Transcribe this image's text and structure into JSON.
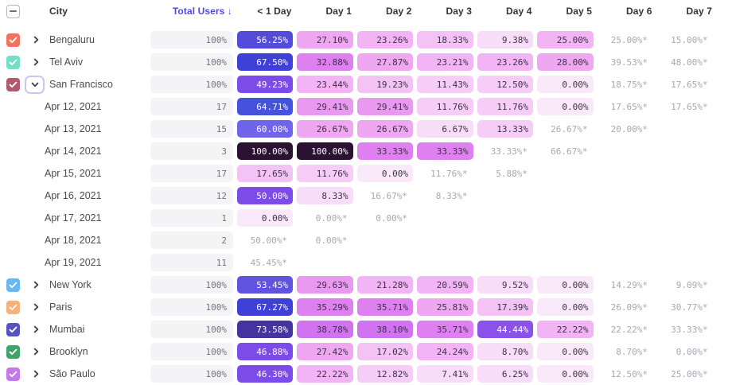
{
  "colors": {
    "accent": "#4E49E4",
    "header_text": "#34333E",
    "label_text": "#4B4A54",
    "muted_text": "#A7A7B2",
    "total_pill_bg": "#F4F3F6",
    "focus_ring": "#CDC4F4",
    "heat_scale": [
      {
        "max": 5,
        "bg": "#FAE9FB",
        "fg": "#3A3344"
      },
      {
        "max": 10,
        "bg": "#F8DDF9",
        "fg": "#3A3344"
      },
      {
        "max": 16,
        "bg": "#F6CDF7",
        "fg": "#3A3344"
      },
      {
        "max": 20,
        "bg": "#F4C3F5",
        "fg": "#3A3344"
      },
      {
        "max": 25,
        "bg": "#F2B4F4",
        "fg": "#3A3344"
      },
      {
        "max": 28,
        "bg": "#EFA7F2",
        "fg": "#3A3344"
      },
      {
        "max": 31,
        "bg": "#EA99F1",
        "fg": "#3A3344"
      },
      {
        "max": 36,
        "bg": "#DE80F0",
        "fg": "#3A3344"
      },
      {
        "max": 42,
        "bg": "#D172F0",
        "fg": "#3A3344"
      },
      {
        "max": 46,
        "bg": "#8A52E8",
        "fg": "#FFFFFF"
      },
      {
        "max": 52,
        "bg": "#7D4BE8",
        "fg": "#FFFFFF"
      },
      {
        "max": 55,
        "bg": "#6053E0",
        "fg": "#FFFFFF"
      },
      {
        "max": 58,
        "bg": "#554BDB",
        "fg": "#FFFFFF"
      },
      {
        "max": 62,
        "bg": "#6F64EA",
        "fg": "#FFFFFF"
      },
      {
        "max": 66,
        "bg": "#4553DC",
        "fg": "#FFFFFF"
      },
      {
        "max": 70,
        "bg": "#3F40D6",
        "fg": "#FFFFFF"
      },
      {
        "max": 85,
        "bg": "#45339E",
        "fg": "#FFFFFF"
      },
      {
        "max": 101,
        "bg": "#2C1232",
        "fg": "#FFFFFF"
      }
    ]
  },
  "icons": {
    "select_all": "indeterminate-dash",
    "row_check": "checkmark",
    "expand": "chevron-right",
    "collapse": "chevron-down",
    "sort": "arrow-down"
  },
  "table": {
    "select_all_state": "indeterminate",
    "columns": [
      {
        "key": "city",
        "label": "City"
      },
      {
        "key": "total",
        "label": "Total Users ↓",
        "sorted": "desc"
      },
      {
        "key": "d0",
        "label": "< 1 Day"
      },
      {
        "key": "d1",
        "label": "Day 1"
      },
      {
        "key": "d2",
        "label": "Day 2"
      },
      {
        "key": "d3",
        "label": "Day 3"
      },
      {
        "key": "d4",
        "label": "Day 4"
      },
      {
        "key": "d5",
        "label": "Day 5"
      },
      {
        "key": "d6",
        "label": "Day 6"
      },
      {
        "key": "d7",
        "label": "Day 7"
      }
    ],
    "rows": [
      {
        "type": "city",
        "label": "Bengaluru",
        "checkbox_color": "#F4715C",
        "checked": true,
        "expanded": false,
        "total": "100%",
        "cells": [
          {
            "pct": 56.25,
            "text": "56.25%"
          },
          {
            "pct": 27.1,
            "text": "27.10%"
          },
          {
            "pct": 23.26,
            "text": "23.26%"
          },
          {
            "pct": 18.33,
            "text": "18.33%"
          },
          {
            "pct": 9.38,
            "text": "9.38%"
          },
          {
            "pct": 25.0,
            "text": "25.00%"
          },
          {
            "text": "25.00%*",
            "partial": true
          },
          {
            "text": "15.00%*",
            "partial": true
          }
        ]
      },
      {
        "type": "city",
        "label": "Tel Aviv",
        "checkbox_color": "#74DEC6",
        "checked": true,
        "expanded": false,
        "total": "100%",
        "cells": [
          {
            "pct": 67.5,
            "text": "67.50%"
          },
          {
            "pct": 32.88,
            "text": "32.88%"
          },
          {
            "pct": 27.87,
            "text": "27.87%"
          },
          {
            "pct": 23.21,
            "text": "23.21%"
          },
          {
            "pct": 23.26,
            "text": "23.26%"
          },
          {
            "pct": 28.0,
            "text": "28.00%"
          },
          {
            "text": "39.53%*",
            "partial": true
          },
          {
            "text": "48.00%*",
            "partial": true
          }
        ]
      },
      {
        "type": "city",
        "label": "San Francisco",
        "checkbox_color": "#B25A6B",
        "checked": true,
        "expanded": true,
        "total": "100%",
        "cells": [
          {
            "pct": 49.23,
            "text": "49.23%"
          },
          {
            "pct": 23.44,
            "text": "23.44%"
          },
          {
            "pct": 19.23,
            "text": "19.23%"
          },
          {
            "pct": 11.43,
            "text": "11.43%"
          },
          {
            "pct": 12.5,
            "text": "12.50%"
          },
          {
            "pct": 0.0,
            "text": "0.00%"
          },
          {
            "text": "18.75%*",
            "partial": true
          },
          {
            "text": "17.65%*",
            "partial": true
          }
        ]
      },
      {
        "type": "cohort",
        "label": "Apr 12, 2021",
        "total": "17",
        "cells": [
          {
            "pct": 64.71,
            "text": "64.71%"
          },
          {
            "pct": 29.41,
            "text": "29.41%"
          },
          {
            "pct": 29.41,
            "text": "29.41%"
          },
          {
            "pct": 11.76,
            "text": "11.76%"
          },
          {
            "pct": 11.76,
            "text": "11.76%"
          },
          {
            "pct": 0.0,
            "text": "0.00%"
          },
          {
            "text": "17.65%*",
            "partial": true
          },
          {
            "text": "17.65%*",
            "partial": true
          }
        ]
      },
      {
        "type": "cohort",
        "label": "Apr 13, 2021",
        "total": "15",
        "cells": [
          {
            "pct": 60.0,
            "text": "60.00%"
          },
          {
            "pct": 26.67,
            "text": "26.67%"
          },
          {
            "pct": 26.67,
            "text": "26.67%"
          },
          {
            "pct": 6.67,
            "text": "6.67%"
          },
          {
            "pct": 13.33,
            "text": "13.33%"
          },
          {
            "text": "26.67%*",
            "partial": true
          },
          {
            "text": "20.00%*",
            "partial": true
          },
          null
        ]
      },
      {
        "type": "cohort",
        "label": "Apr 14, 2021",
        "total": "3",
        "cells": [
          {
            "pct": 100.0,
            "text": "100.00%"
          },
          {
            "pct": 100.0,
            "text": "100.00%"
          },
          {
            "pct": 33.33,
            "text": "33.33%"
          },
          {
            "pct": 33.33,
            "text": "33.33%"
          },
          {
            "text": "33.33%*",
            "partial": true
          },
          {
            "text": "66.67%*",
            "partial": true
          },
          null,
          null
        ]
      },
      {
        "type": "cohort",
        "label": "Apr 15, 2021",
        "total": "17",
        "cells": [
          {
            "pct": 17.65,
            "text": "17.65%"
          },
          {
            "pct": 11.76,
            "text": "11.76%"
          },
          {
            "pct": 0.0,
            "text": "0.00%"
          },
          {
            "text": "11.76%*",
            "partial": true
          },
          {
            "text": "5.88%*",
            "partial": true
          },
          null,
          null,
          null
        ]
      },
      {
        "type": "cohort",
        "label": "Apr 16, 2021",
        "total": "12",
        "cells": [
          {
            "pct": 50.0,
            "text": "50.00%"
          },
          {
            "pct": 8.33,
            "text": "8.33%"
          },
          {
            "text": "16.67%*",
            "partial": true
          },
          {
            "text": "8.33%*",
            "partial": true
          },
          null,
          null,
          null,
          null
        ]
      },
      {
        "type": "cohort",
        "label": "Apr 17, 2021",
        "total": "1",
        "cells": [
          {
            "pct": 0.0,
            "text": "0.00%"
          },
          {
            "text": "0.00%*",
            "partial": true
          },
          {
            "text": "0.00%*",
            "partial": true
          },
          null,
          null,
          null,
          null,
          null
        ]
      },
      {
        "type": "cohort",
        "label": "Apr 18, 2021",
        "total": "2",
        "cells": [
          {
            "text": "50.00%*",
            "partial": true
          },
          {
            "text": "0.00%*",
            "partial": true
          },
          null,
          null,
          null,
          null,
          null,
          null
        ]
      },
      {
        "type": "cohort",
        "label": "Apr 19, 2021",
        "total": "11",
        "cells": [
          {
            "text": "45.45%*",
            "partial": true
          },
          null,
          null,
          null,
          null,
          null,
          null,
          null
        ]
      },
      {
        "type": "city",
        "label": "New York",
        "checkbox_color": "#67B7F1",
        "checked": true,
        "expanded": false,
        "total": "100%",
        "cells": [
          {
            "pct": 53.45,
            "text": "53.45%"
          },
          {
            "pct": 29.63,
            "text": "29.63%"
          },
          {
            "pct": 21.28,
            "text": "21.28%"
          },
          {
            "pct": 20.59,
            "text": "20.59%"
          },
          {
            "pct": 9.52,
            "text": "9.52%"
          },
          {
            "pct": 0.0,
            "text": "0.00%"
          },
          {
            "text": "14.29%*",
            "partial": true
          },
          {
            "text": "9.09%*",
            "partial": true
          }
        ]
      },
      {
        "type": "city",
        "label": "Paris",
        "checkbox_color": "#F8B177",
        "checked": true,
        "expanded": false,
        "total": "100%",
        "cells": [
          {
            "pct": 67.27,
            "text": "67.27%"
          },
          {
            "pct": 35.29,
            "text": "35.29%"
          },
          {
            "pct": 35.71,
            "text": "35.71%"
          },
          {
            "pct": 25.81,
            "text": "25.81%"
          },
          {
            "pct": 17.39,
            "text": "17.39%"
          },
          {
            "pct": 0.0,
            "text": "0.00%"
          },
          {
            "text": "26.09%*",
            "partial": true
          },
          {
            "text": "30.77%*",
            "partial": true
          }
        ]
      },
      {
        "type": "city",
        "label": "Mumbai",
        "checkbox_color": "#5852BE",
        "checked": true,
        "expanded": false,
        "total": "100%",
        "cells": [
          {
            "pct": 73.58,
            "text": "73.58%"
          },
          {
            "pct": 38.78,
            "text": "38.78%"
          },
          {
            "pct": 38.1,
            "text": "38.10%"
          },
          {
            "pct": 35.71,
            "text": "35.71%"
          },
          {
            "pct": 44.44,
            "text": "44.44%"
          },
          {
            "pct": 22.22,
            "text": "22.22%"
          },
          {
            "text": "22.22%*",
            "partial": true
          },
          {
            "text": "33.33%*",
            "partial": true
          }
        ]
      },
      {
        "type": "city",
        "label": "Brooklyn",
        "checkbox_color": "#3FA469",
        "checked": true,
        "expanded": false,
        "total": "100%",
        "cells": [
          {
            "pct": 46.88,
            "text": "46.88%"
          },
          {
            "pct": 27.42,
            "text": "27.42%"
          },
          {
            "pct": 17.02,
            "text": "17.02%"
          },
          {
            "pct": 24.24,
            "text": "24.24%"
          },
          {
            "pct": 8.7,
            "text": "8.70%"
          },
          {
            "pct": 0.0,
            "text": "0.00%"
          },
          {
            "text": "8.70%*",
            "partial": true
          },
          {
            "text": "0.00%*",
            "partial": true
          }
        ]
      },
      {
        "type": "city",
        "label": "São Paulo",
        "checkbox_color": "#C579E8",
        "checked": true,
        "expanded": false,
        "total": "100%",
        "cells": [
          {
            "pct": 46.3,
            "text": "46.30%"
          },
          {
            "pct": 22.22,
            "text": "22.22%"
          },
          {
            "pct": 12.82,
            "text": "12.82%"
          },
          {
            "pct": 7.41,
            "text": "7.41%"
          },
          {
            "pct": 6.25,
            "text": "6.25%"
          },
          {
            "pct": 0.0,
            "text": "0.00%"
          },
          {
            "text": "12.50%*",
            "partial": true
          },
          {
            "text": "25.00%*",
            "partial": true
          }
        ]
      }
    ]
  }
}
